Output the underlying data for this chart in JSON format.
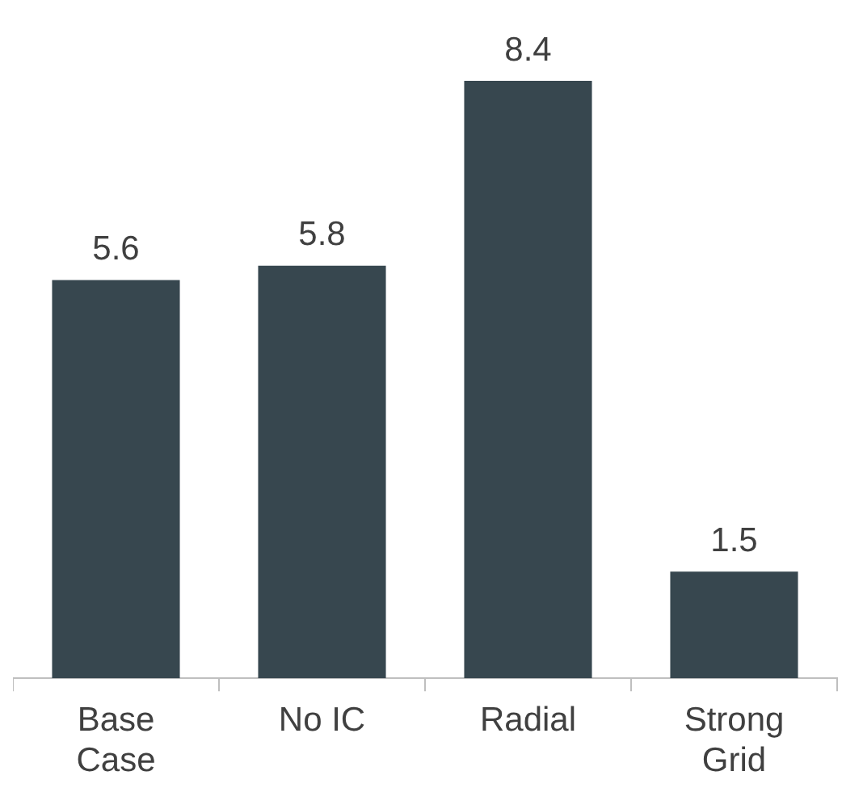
{
  "chart_data": {
    "type": "bar",
    "categories": [
      "Base Case",
      "No IC",
      "Radial",
      "Strong Grid"
    ],
    "values": [
      5.6,
      5.8,
      8.4,
      1.5
    ],
    "color": "#37474f",
    "data_labels": true,
    "grid": false,
    "legend": false
  }
}
